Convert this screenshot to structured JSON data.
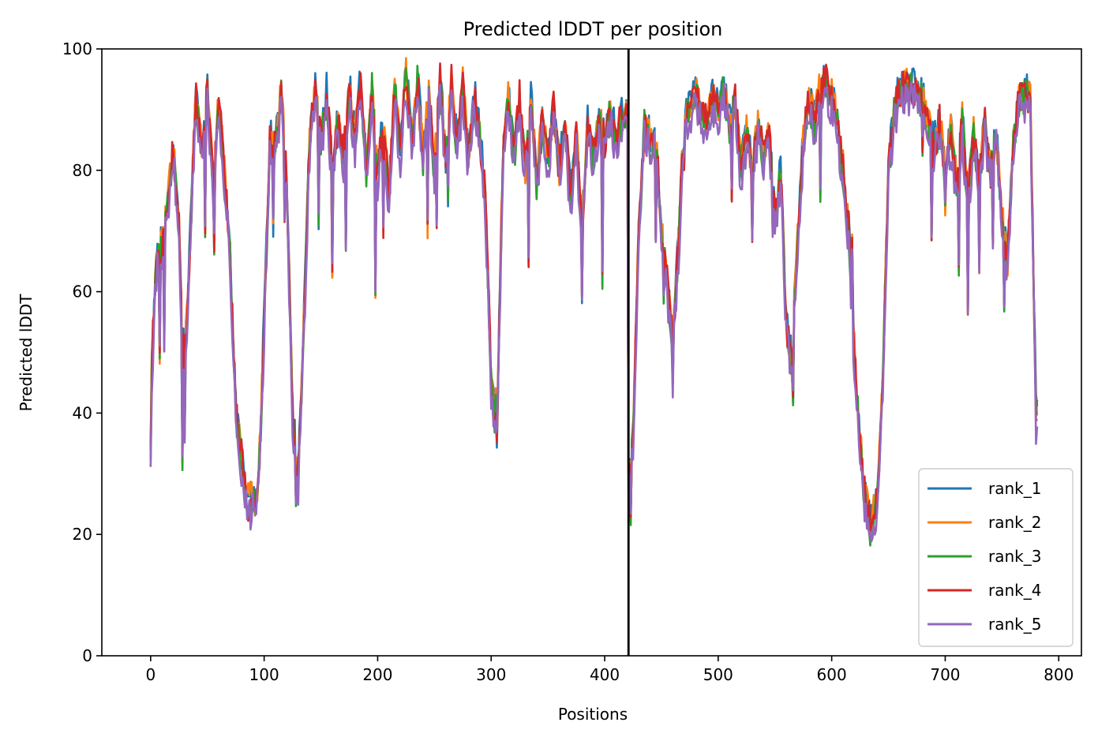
{
  "chart_data": {
    "type": "line",
    "title": "Predicted lDDT per position",
    "xlabel": "Positions",
    "ylabel": "Predicted lDDT",
    "xlim": [
      -43,
      820
    ],
    "ylim": [
      0,
      100
    ],
    "xticks": [
      0,
      100,
      200,
      300,
      400,
      500,
      600,
      700,
      800
    ],
    "yticks": [
      0,
      20,
      40,
      60,
      80,
      100
    ],
    "grid": false,
    "legend_position": "lower-right",
    "chain_break": 421,
    "profile": {
      "x": [
        0,
        5,
        10,
        15,
        20,
        25,
        28,
        32,
        36,
        40,
        45,
        50,
        55,
        60,
        65,
        70,
        75,
        80,
        85,
        90,
        95,
        100,
        105,
        110,
        115,
        120,
        125,
        130,
        135,
        140,
        145,
        150,
        155,
        160,
        165,
        170,
        175,
        180,
        185,
        190,
        195,
        200,
        205,
        210,
        215,
        220,
        225,
        230,
        235,
        240,
        245,
        250,
        255,
        260,
        265,
        270,
        275,
        280,
        285,
        290,
        295,
        300,
        303,
        306,
        310,
        315,
        320,
        325,
        330,
        335,
        340,
        345,
        350,
        355,
        360,
        365,
        370,
        375,
        380,
        385,
        390,
        395,
        400,
        405,
        410,
        415,
        420,
        421,
        425,
        430,
        435,
        440,
        445,
        450,
        455,
        460,
        465,
        470,
        475,
        480,
        485,
        490,
        495,
        500,
        505,
        510,
        515,
        520,
        525,
        530,
        535,
        540,
        545,
        550,
        555,
        560,
        565,
        570,
        575,
        580,
        585,
        590,
        595,
        600,
        605,
        610,
        615,
        620,
        625,
        630,
        635,
        640,
        645,
        650,
        655,
        660,
        665,
        670,
        675,
        680,
        685,
        690,
        695,
        700,
        705,
        710,
        715,
        720,
        725,
        730,
        735,
        740,
        745,
        750,
        755,
        760,
        765,
        770,
        775,
        780
      ],
      "y": [
        44,
        65,
        68,
        74,
        84,
        70,
        50,
        55,
        75,
        92,
        84,
        93,
        78,
        91,
        80,
        66,
        40,
        33,
        25,
        26,
        28,
        55,
        85,
        84,
        93,
        78,
        40,
        30,
        55,
        85,
        94,
        85,
        93,
        80,
        88,
        82,
        94,
        85,
        95,
        80,
        94,
        80,
        88,
        75,
        95,
        82,
        96,
        85,
        95,
        82,
        93,
        80,
        95,
        82,
        95,
        84,
        94,
        82,
        93,
        86,
        75,
        45,
        40,
        45,
        80,
        93,
        82,
        92,
        80,
        92,
        78,
        88,
        82,
        90,
        80,
        88,
        75,
        86,
        70,
        88,
        82,
        88,
        85,
        90,
        85,
        89,
        88,
        30,
        36,
        70,
        88,
        85,
        86,
        70,
        62,
        52,
        68,
        88,
        91,
        93,
        90,
        88,
        92,
        90,
        94,
        88,
        92,
        80,
        86,
        80,
        88,
        82,
        86,
        72,
        80,
        55,
        48,
        70,
        85,
        92,
        88,
        94,
        95,
        92,
        88,
        80,
        70,
        50,
        35,
        25,
        23,
        25,
        45,
        80,
        90,
        93,
        94,
        94,
        93,
        92,
        88,
        84,
        88,
        80,
        86,
        78,
        88,
        75,
        86,
        78,
        88,
        80,
        86,
        72,
        65,
        85,
        92,
        93,
        92,
        40
      ],
      "spike_x": [
        0,
        8,
        12,
        28,
        30,
        48,
        56,
        68,
        84,
        92,
        108,
        118,
        128,
        148,
        160,
        172,
        198,
        205,
        244,
        252,
        262,
        305,
        333,
        380,
        398,
        423,
        445,
        452,
        460,
        470,
        512,
        530,
        548,
        566,
        590,
        618,
        634,
        680,
        688,
        700,
        712,
        720,
        730,
        742,
        752
      ],
      "spike_y": [
        33,
        50,
        52,
        32,
        36,
        70,
        68,
        72,
        26,
        24,
        71,
        72,
        26,
        72,
        64,
        68,
        60,
        70,
        70,
        72,
        76,
        36,
        65,
        60,
        62,
        23,
        70,
        60,
        44,
        82,
        76,
        70,
        70,
        42,
        76,
        68,
        20,
        84,
        70,
        74,
        64,
        56,
        64,
        68,
        58
      ]
    },
    "series": [
      {
        "name": "rank_1",
        "color": "#1f77b4",
        "offset": 0.5,
        "seed": 11
      },
      {
        "name": "rank_2",
        "color": "#ff7f0e",
        "offset": 0.3,
        "seed": 23
      },
      {
        "name": "rank_3",
        "color": "#2ca02c",
        "offset": -0.6,
        "seed": 37
      },
      {
        "name": "rank_4",
        "color": "#d62728",
        "offset": 0.0,
        "seed": 53
      },
      {
        "name": "rank_5",
        "color": "#9467bd",
        "offset": -2.2,
        "seed": 71
      }
    ]
  }
}
